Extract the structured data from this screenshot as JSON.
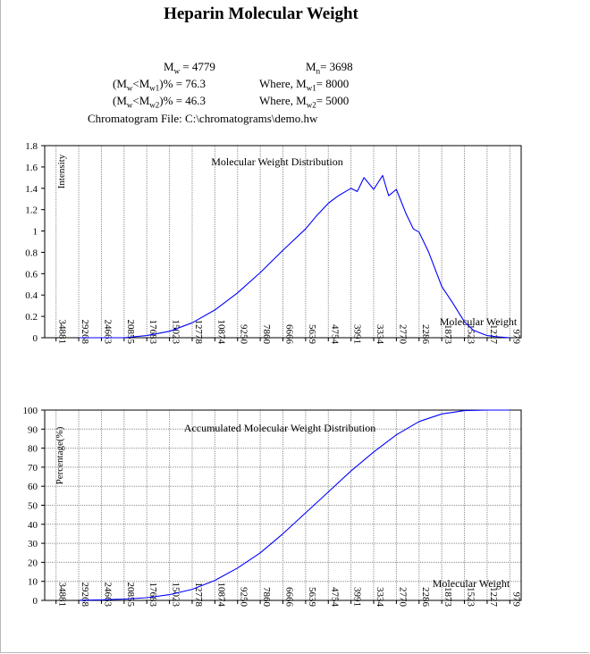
{
  "title": "Heparin Molecular Weight",
  "stats": {
    "mw": {
      "sym": "M",
      "sub": "w",
      "rest": " = 4779"
    },
    "mn": {
      "sym": "M",
      "sub": "n",
      "rest": "= 3698"
    },
    "r1_open": "(M",
    "r1_s1": "w",
    "r1_mid": "<M",
    "r1_s2": "w1",
    "r1_rest": ")% = 76.3",
    "r2_open": "(M",
    "r2_s1": "w",
    "r2_mid": "<M",
    "r2_s2": "w2",
    "r2_rest": ")% = 46.3",
    "w1_pre": "Where, M",
    "w1_sub": "w1",
    "w1_rest": "= 8000",
    "w2_pre": "Where, M",
    "w2_sub": "w2",
    "w2_rest": "= 5000",
    "file": "Chromatogram File:  C:\\chromatograms\\demo.hw"
  },
  "chart_data": [
    {
      "type": "line",
      "title": "Molecular Weight Distribution",
      "ylabel": "Intensity",
      "xlabel": "Molecular Weight",
      "x_ticks": [
        "34881",
        "29268",
        "24663",
        "20855",
        "17683",
        "15023",
        "12778",
        "10874",
        "9250",
        "7860",
        "6666",
        "5639",
        "4754",
        "3991",
        "3334",
        "2770",
        "2286",
        "1873",
        "1523",
        "1227",
        "979"
      ],
      "ylim": [
        0,
        1.8
      ],
      "y_ticks": [
        "0",
        "0.2",
        "0.4",
        "0.6",
        "0.8",
        "1",
        "1.2",
        "1.4",
        "1.6",
        "1.8"
      ],
      "grid": "vertical",
      "x": [
        29268,
        24663,
        20855,
        17683,
        15023,
        12778,
        10874,
        9250,
        7860,
        6666,
        5639,
        5200,
        4754,
        4400,
        3991,
        3800,
        3600,
        3334,
        3100,
        2950,
        2770,
        2550,
        2400,
        2286,
        2100,
        1873,
        1700,
        1523,
        1400,
        1227,
        1100,
        979
      ],
      "values": [
        0.0,
        0.0,
        0.0,
        0.02,
        0.06,
        0.14,
        0.26,
        0.42,
        0.61,
        0.82,
        1.02,
        1.14,
        1.26,
        1.33,
        1.4,
        1.37,
        1.5,
        1.39,
        1.52,
        1.33,
        1.39,
        1.16,
        1.02,
        0.99,
        0.8,
        0.48,
        0.33,
        0.15,
        0.07,
        0.02,
        0.008,
        0.0
      ]
    },
    {
      "type": "line",
      "title": "Accumulated Molecular Weight Distribution",
      "ylabel": "Percentage(%)",
      "xlabel": "Molecular Weight",
      "x_ticks": [
        "34881",
        "29268",
        "24663",
        "20855",
        "17683",
        "15023",
        "12778",
        "10874",
        "9250",
        "7860",
        "6666",
        "5639",
        "4754",
        "3991",
        "3334",
        "2770",
        "2286",
        "1873",
        "1523",
        "1227",
        "979"
      ],
      "ylim": [
        0,
        100
      ],
      "y_ticks": [
        "0",
        "10",
        "20",
        "30",
        "40",
        "50",
        "60",
        "70",
        "80",
        "90",
        "100"
      ],
      "grid": "both",
      "x": [
        29268,
        24663,
        20855,
        17683,
        15023,
        12778,
        10874,
        9250,
        7860,
        6666,
        5639,
        4754,
        3991,
        3334,
        2770,
        2286,
        1873,
        1523,
        1227,
        979
      ],
      "values": [
        0.1,
        0.3,
        0.7,
        1.4,
        3.0,
        5.8,
        10.5,
        17,
        25,
        35,
        46,
        57,
        68,
        78,
        87,
        94,
        98,
        99.7,
        100,
        100
      ]
    }
  ]
}
